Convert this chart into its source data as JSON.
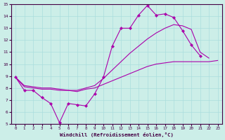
{
  "xlabel": "Windchill (Refroidissement éolien,°C)",
  "background_color": "#cceee8",
  "grid_color": "#aadddd",
  "line_color": "#aa00aa",
  "xlim": [
    -0.5,
    23.5
  ],
  "ylim": [
    5,
    15
  ],
  "xticks": [
    0,
    1,
    2,
    3,
    4,
    5,
    6,
    7,
    8,
    9,
    10,
    11,
    12,
    13,
    14,
    15,
    16,
    17,
    18,
    19,
    20,
    21,
    22,
    23
  ],
  "yticks": [
    5,
    6,
    7,
    8,
    9,
    10,
    11,
    12,
    13,
    14,
    15
  ],
  "line1_x": [
    0,
    1,
    2,
    3,
    4,
    5,
    6,
    7,
    8,
    9,
    10,
    11,
    12,
    13,
    14,
    15,
    16,
    17,
    18,
    19,
    20,
    21
  ],
  "line1_y": [
    8.9,
    7.8,
    7.8,
    7.2,
    6.7,
    5.1,
    6.7,
    6.6,
    6.5,
    7.5,
    8.9,
    11.5,
    13.0,
    13.0,
    14.1,
    14.9,
    14.1,
    14.2,
    13.9,
    12.8,
    11.6,
    10.7
  ],
  "line2_x": [
    0,
    1,
    2,
    3,
    4,
    5,
    6,
    7,
    8,
    9,
    10,
    11,
    12,
    13,
    14,
    15,
    16,
    17,
    18,
    19,
    20,
    21,
    22,
    23
  ],
  "line2_y": [
    8.9,
    8.1,
    8.0,
    7.9,
    7.9,
    7.8,
    7.8,
    7.7,
    7.9,
    8.0,
    8.3,
    8.6,
    8.9,
    9.2,
    9.5,
    9.8,
    10.0,
    10.1,
    10.2,
    10.2,
    10.2,
    10.2,
    10.2,
    10.3
  ],
  "line3_x": [
    0,
    1,
    2,
    3,
    4,
    5,
    6,
    7,
    8,
    9,
    10,
    11,
    12,
    13,
    14,
    15,
    16,
    17,
    18,
    19,
    20,
    21,
    22
  ],
  "line3_y": [
    8.9,
    8.2,
    8.1,
    8.0,
    8.0,
    7.9,
    7.8,
    7.8,
    8.0,
    8.2,
    8.8,
    9.5,
    10.2,
    10.9,
    11.5,
    12.1,
    12.6,
    13.0,
    13.3,
    13.2,
    12.9,
    11.0,
    10.5
  ]
}
